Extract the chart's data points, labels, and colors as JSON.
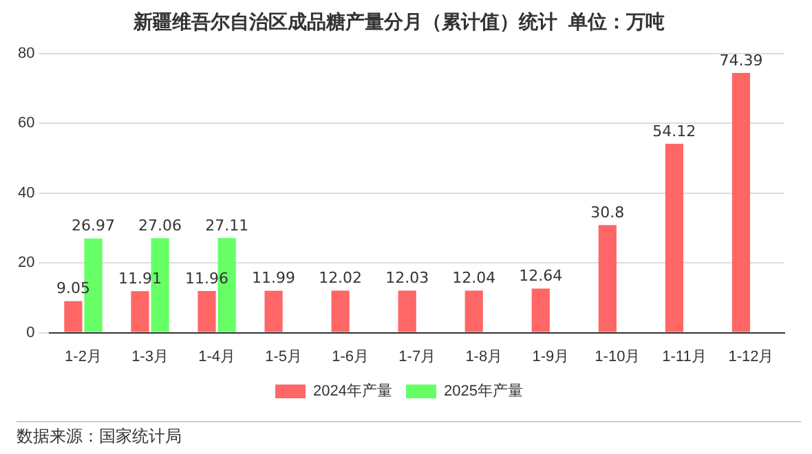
{
  "chart_data": {
    "type": "bar",
    "title": "新疆维吾尔自治区成品糖产量分月（累计值）统计  单位：万吨",
    "categories": [
      "1-2月",
      "1-3月",
      "1-4月",
      "1-5月",
      "1-6月",
      "1-7月",
      "1-8月",
      "1-9月",
      "1-10月",
      "1-11月",
      "1-12月"
    ],
    "series": [
      {
        "name": "2024年产量",
        "color": "#ff6666",
        "values": [
          9.05,
          11.91,
          11.96,
          11.99,
          12.02,
          12.03,
          12.04,
          12.64,
          30.8,
          54.12,
          74.39
        ]
      },
      {
        "name": "2025年产量",
        "color": "#66ff66",
        "values": [
          26.97,
          27.06,
          27.11,
          null,
          null,
          null,
          null,
          null,
          null,
          null,
          null
        ]
      }
    ],
    "ylim": [
      0,
      80
    ],
    "yticks": [
      0,
      20,
      40,
      60,
      80
    ],
    "grid": "y",
    "legend": "bottom",
    "data_labels": true,
    "annotations": [
      "数据来源：国家统计局"
    ]
  }
}
